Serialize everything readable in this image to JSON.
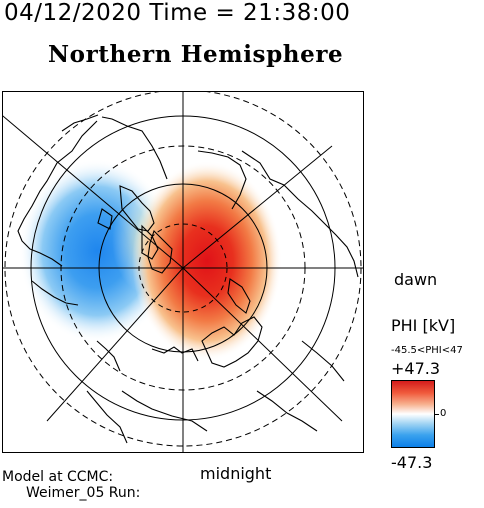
{
  "header": {
    "datetime": "04/12/2020 Time = 21:38:00"
  },
  "title": "Northern Hemisphere",
  "map": {
    "labels": {
      "dawn": "dawn",
      "midnight": "midnight"
    },
    "features": [
      "coastline",
      "geographic-latitude-circles",
      "magnetic-latitude-circles",
      "meridian-lines"
    ]
  },
  "colorbar": {
    "title": "PHI [kV]",
    "range_text": "-45.5<PHI<47",
    "max_label": "+47.3",
    "min_label": "-47.3",
    "zero_label": "0",
    "max_color": "#d41c1c",
    "min_color": "#0c7fe8",
    "mid_color": "#ffffff"
  },
  "footer": {
    "model_line1": "Model at CCMC:",
    "model_line2": "Weimer_05 Run:"
  },
  "colors": {
    "positive": "#e8201e",
    "negative": "#2e8ff0",
    "lines": "#000000"
  }
}
